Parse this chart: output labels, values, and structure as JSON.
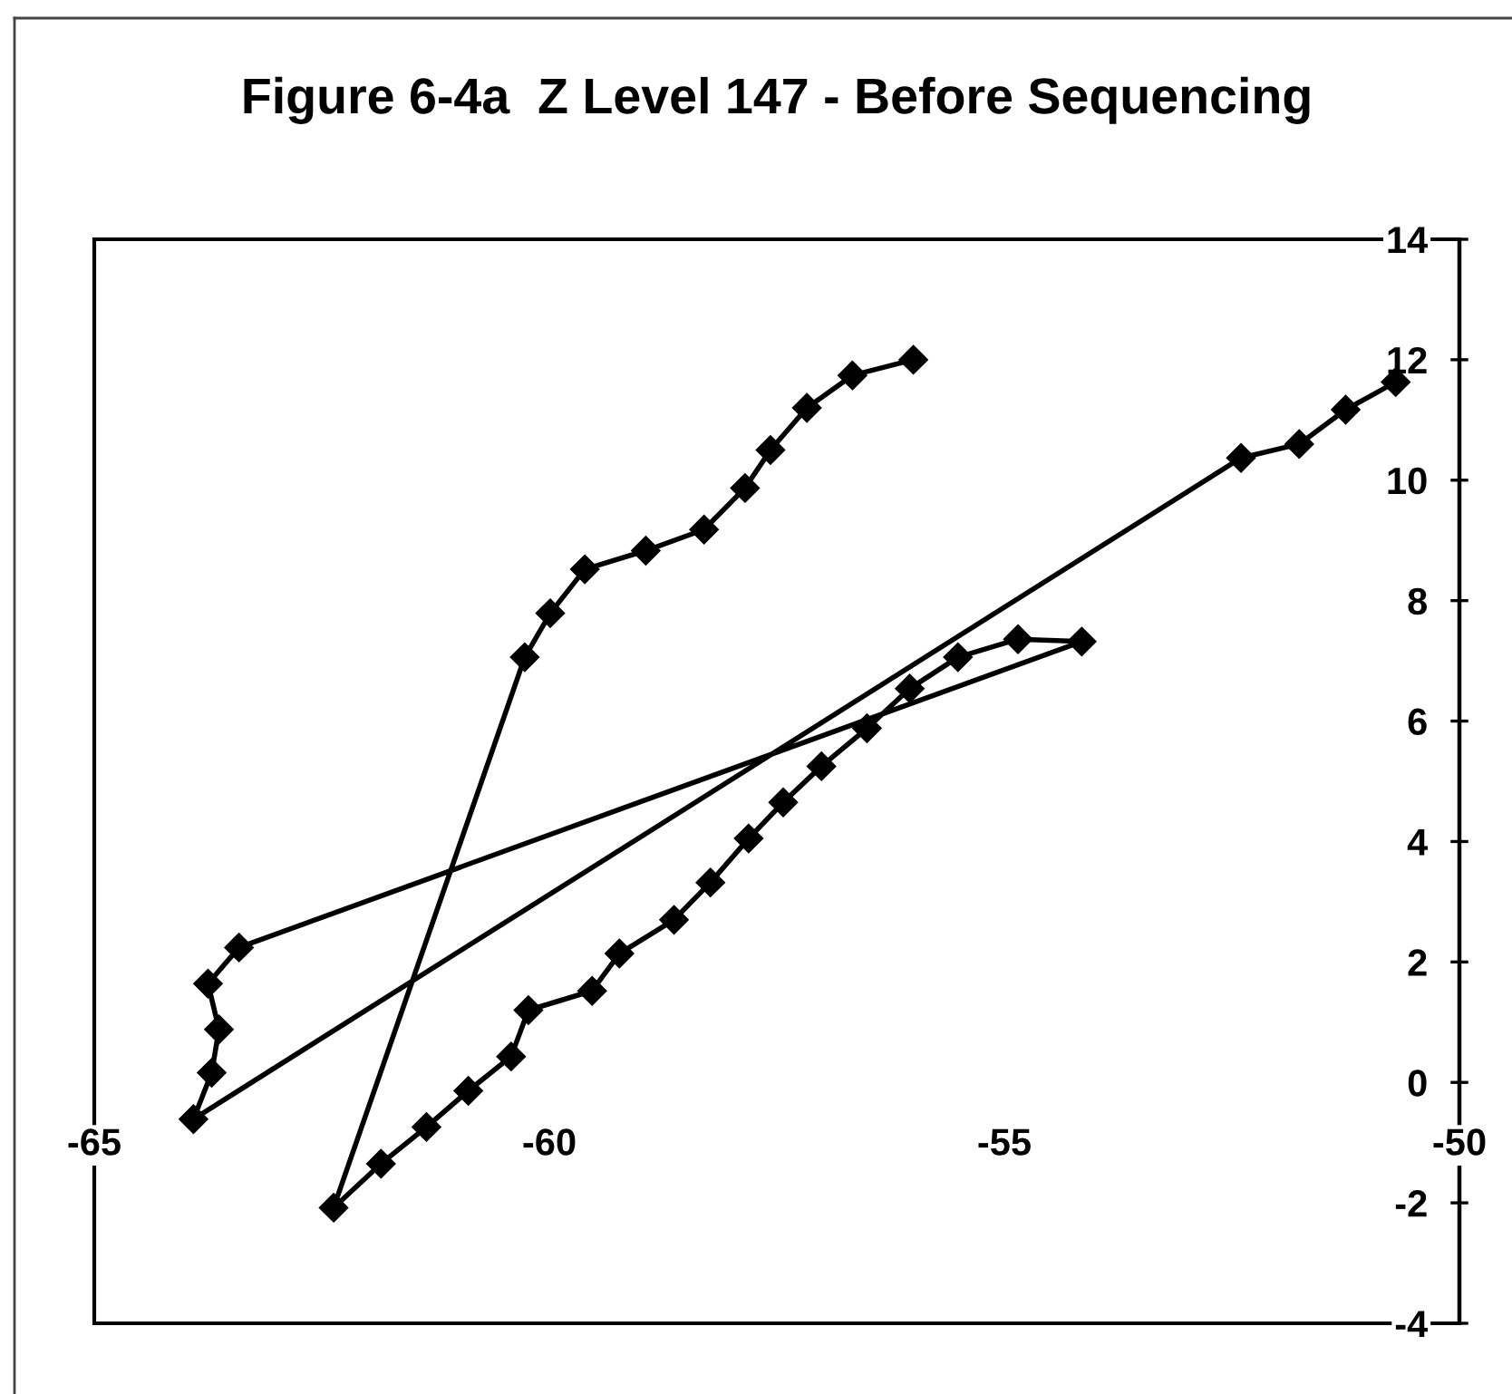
{
  "chart_data": {
    "type": "line",
    "title": "Figure 6-4a  Z Level 147 - Before Sequencing",
    "x": [
      -56.0,
      -56.67,
      -57.17,
      -57.57,
      -57.85,
      -58.3,
      -58.94,
      -59.61,
      -59.99,
      -60.27,
      -62.37,
      -61.85,
      -61.35,
      -60.89,
      -60.42,
      -60.23,
      -59.53,
      -59.23,
      -58.63,
      -58.23,
      -57.81,
      -57.43,
      -57.01,
      -56.51,
      -56.04,
      -55.51,
      -54.85,
      -54.15,
      -63.41,
      -63.75,
      -63.63,
      -63.71,
      -63.91,
      -52.4,
      -51.76,
      -51.25,
      -50.7
    ],
    "series": [
      {
        "color": "#000000",
        "values": [
          12.0,
          11.74,
          11.2,
          10.5,
          9.87,
          9.18,
          8.83,
          8.52,
          7.79,
          7.06,
          -2.08,
          -1.35,
          -0.74,
          -0.14,
          0.43,
          1.2,
          1.52,
          2.14,
          2.7,
          3.32,
          4.05,
          4.65,
          5.25,
          5.88,
          6.54,
          7.06,
          7.36,
          7.32,
          2.24,
          1.64,
          0.88,
          0.16,
          -0.61,
          10.37,
          10.6,
          11.17,
          11.63
        ]
      }
    ],
    "xlim": [
      -65,
      -50
    ],
    "xticks": [
      -65,
      -60,
      -55,
      -50
    ],
    "ylim": [
      -4,
      14
    ],
    "yticks": [
      -4,
      -2,
      0,
      2,
      4,
      6,
      8,
      10,
      12,
      14
    ],
    "grid": false,
    "marker": "diamond",
    "line_style": "solid"
  }
}
